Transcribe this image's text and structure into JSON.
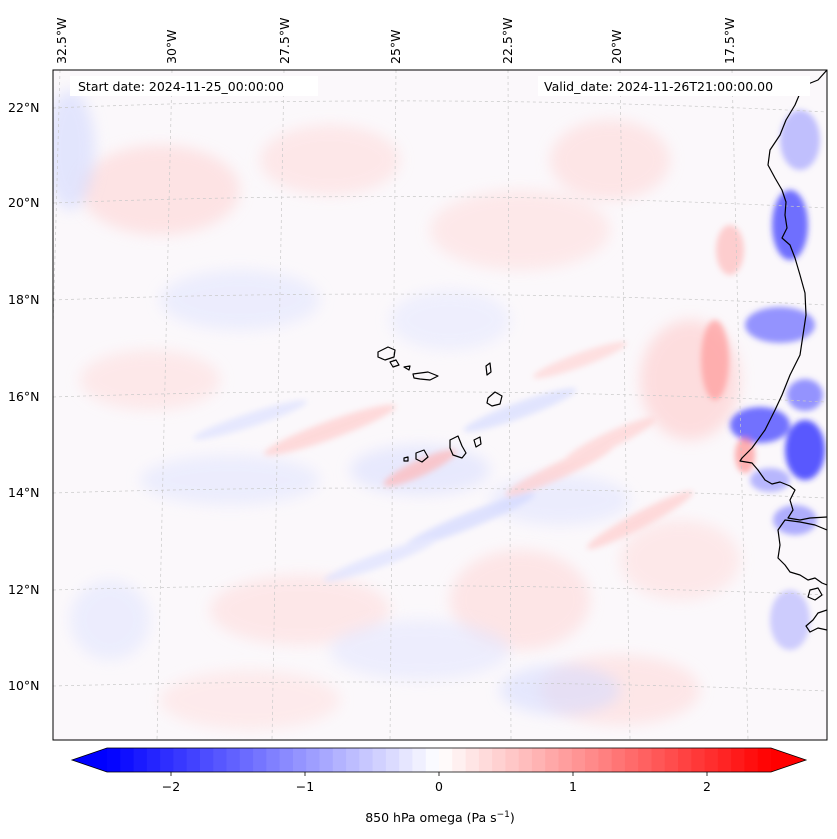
{
  "header": {
    "start_date": "Start date: 2024-11-25_00:00:00",
    "valid_date": "Valid_date: 2024-11-26T21:00:00.00"
  },
  "map": {
    "lon_labels": [
      "32.5°W",
      "30°W",
      "27.5°W",
      "25°W",
      "22.5°W",
      "20°W",
      "17.5°W"
    ],
    "lat_labels": [
      "22°N",
      "20°N",
      "18°N",
      "16°N",
      "14°N",
      "12°N",
      "10°N"
    ],
    "lon_range": [
      -33.0,
      -15.0
    ],
    "lat_range": [
      9.0,
      22.8
    ],
    "coastline_color": "#000000",
    "gridline_color": "#cccccc"
  },
  "colorbar": {
    "label": "850 hPa omega (Pa s",
    "label_sup": "−1",
    "label_end": ")",
    "ticks": [
      "−2",
      "−1",
      "0",
      "1",
      "2"
    ],
    "range": [
      -2.7,
      2.7
    ],
    "colormap": "bwr",
    "negative_color": "#0000ff",
    "positive_color": "#ff0000"
  }
}
